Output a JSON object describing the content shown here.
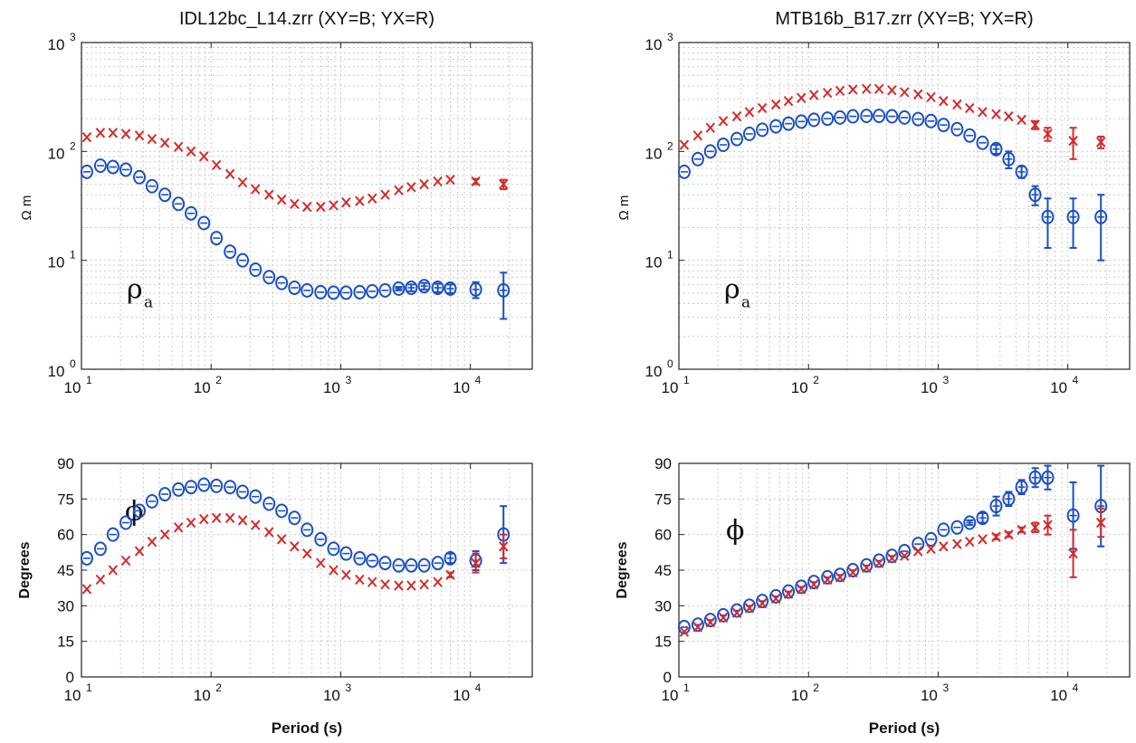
{
  "labels": {
    "rho_symbol": "ρ",
    "rho_sub": "a",
    "phi_symbol": "ϕ"
  },
  "colors": {
    "xy": "#1a4fc4",
    "yx": "#d42a2a",
    "grid": "#c9c9c9"
  },
  "chart_data": [
    {
      "type": "scatter",
      "title": "IDL12bc_L14.zrr (XY=B; YX=R)",
      "ylabel": "Ω m",
      "xlabel": "",
      "xscale": "log",
      "yscale": "log",
      "xlim": [
        10,
        30000
      ],
      "ylim": [
        1,
        1000
      ],
      "xticks": [
        "10",
        "10",
        "10",
        "10"
      ],
      "xtick_exponents": [
        "1",
        "2",
        "3",
        "4"
      ],
      "yticks": [
        "10",
        "10",
        "10",
        "10"
      ],
      "ytick_exponents": [
        "0",
        "1",
        "2",
        "3"
      ],
      "annotation": "ρa",
      "grid": true,
      "series": [
        {
          "marker": "o",
          "color": "blue",
          "x": [
            11,
            14,
            17.5,
            22,
            28,
            35,
            44,
            56,
            70,
            88,
            110,
            140,
            175,
            220,
            280,
            350,
            440,
            550,
            700,
            880,
            1100,
            1400,
            1750,
            2200,
            2800,
            3500,
            4400,
            5600,
            7000,
            11000,
            18000
          ],
          "y": [
            65,
            74,
            72,
            68,
            58,
            48,
            40,
            33,
            27,
            22,
            16,
            12,
            10,
            8.2,
            7,
            6.2,
            5.6,
            5.3,
            5.1,
            5.05,
            5.05,
            5.1,
            5.2,
            5.3,
            5.5,
            5.6,
            5.8,
            5.6,
            5.5,
            5.4,
            5.3
          ],
          "err": [
            0,
            0,
            0,
            0,
            0,
            0,
            0,
            0,
            0,
            0,
            0,
            0,
            0,
            0,
            0,
            0,
            0,
            0,
            0,
            0,
            0,
            0,
            0,
            0,
            0.2,
            0.4,
            0.4,
            0.5,
            0.5,
            0.9,
            2.4
          ]
        },
        {
          "marker": "x",
          "color": "red",
          "x": [
            11,
            14,
            17.5,
            22,
            28,
            35,
            44,
            56,
            70,
            88,
            110,
            140,
            175,
            220,
            280,
            350,
            440,
            550,
            700,
            880,
            1100,
            1400,
            1750,
            2200,
            2800,
            3500,
            4400,
            5600,
            7000,
            11000,
            18000
          ],
          "y": [
            135,
            148,
            148,
            145,
            140,
            130,
            120,
            110,
            100,
            90,
            75,
            62,
            52,
            45,
            40,
            36,
            33,
            31,
            31,
            32,
            34,
            35,
            37,
            40,
            44,
            47,
            50,
            53,
            55,
            53,
            50
          ],
          "err": [
            0,
            0,
            0,
            0,
            0,
            0,
            0,
            0,
            0,
            0,
            0,
            0,
            0,
            0,
            0,
            0,
            0,
            0,
            0,
            0,
            0,
            0,
            0,
            0,
            0,
            0,
            0,
            0,
            0,
            3,
            5
          ]
        }
      ]
    },
    {
      "type": "scatter",
      "title": "MTB16b_B17.zrr (XY=B; YX=R)",
      "ylabel": "Ω m",
      "xlabel": "",
      "xscale": "log",
      "yscale": "log",
      "xlim": [
        10,
        30000
      ],
      "ylim": [
        1,
        1000
      ],
      "xticks": [
        "10",
        "10",
        "10",
        "10"
      ],
      "xtick_exponents": [
        "1",
        "2",
        "3",
        "4"
      ],
      "yticks": [
        "10",
        "10",
        "10",
        "10"
      ],
      "ytick_exponents": [
        "0",
        "1",
        "2",
        "3"
      ],
      "annotation": "ρa",
      "grid": true,
      "series": [
        {
          "marker": "o",
          "color": "blue",
          "x": [
            11,
            14,
            17.5,
            22,
            28,
            35,
            44,
            56,
            70,
            88,
            110,
            140,
            175,
            220,
            280,
            350,
            440,
            550,
            700,
            880,
            1100,
            1400,
            1750,
            2200,
            2800,
            3500,
            4400,
            5600,
            7000,
            11000,
            18000
          ],
          "y": [
            65,
            85,
            100,
            115,
            130,
            145,
            158,
            170,
            180,
            188,
            195,
            200,
            205,
            210,
            212,
            212,
            210,
            205,
            198,
            190,
            175,
            160,
            140,
            120,
            105,
            85,
            65,
            40,
            25,
            25,
            25
          ],
          "err": [
            0,
            0,
            0,
            0,
            0,
            0,
            0,
            0,
            0,
            0,
            0,
            0,
            0,
            0,
            0,
            0,
            0,
            0,
            0,
            0,
            0,
            0,
            0,
            0,
            10,
            15,
            8,
            8,
            12,
            12,
            15
          ]
        },
        {
          "marker": "x",
          "color": "red",
          "x": [
            11,
            14,
            17.5,
            22,
            28,
            35,
            44,
            56,
            70,
            88,
            110,
            140,
            175,
            220,
            280,
            350,
            440,
            550,
            700,
            880,
            1100,
            1400,
            1750,
            2200,
            2800,
            3500,
            4400,
            5600,
            7000,
            11000,
            18000
          ],
          "y": [
            115,
            140,
            165,
            190,
            210,
            230,
            250,
            270,
            290,
            310,
            330,
            345,
            360,
            370,
            375,
            375,
            365,
            350,
            335,
            315,
            290,
            270,
            250,
            230,
            220,
            210,
            195,
            175,
            145,
            125,
            122
          ],
          "err": [
            0,
            0,
            0,
            0,
            0,
            0,
            0,
            0,
            0,
            0,
            0,
            0,
            0,
            0,
            0,
            0,
            0,
            0,
            0,
            0,
            0,
            0,
            0,
            0,
            0,
            0,
            0,
            15,
            20,
            40,
            15
          ]
        }
      ]
    },
    {
      "type": "scatter",
      "title": "",
      "ylabel": "Degrees",
      "xlabel": "Period (s)",
      "xscale": "log",
      "yscale": "linear",
      "xlim": [
        10,
        30000
      ],
      "ylim": [
        0,
        90
      ],
      "xticks": [
        "10",
        "10",
        "10",
        "10"
      ],
      "xtick_exponents": [
        "1",
        "2",
        "3",
        "4"
      ],
      "yticks": [
        "0",
        "15",
        "30",
        "45",
        "60",
        "75",
        "90"
      ],
      "annotation": "ϕ",
      "grid": true,
      "series": [
        {
          "marker": "o",
          "color": "blue",
          "x": [
            11,
            14,
            17.5,
            22,
            28,
            35,
            44,
            56,
            70,
            88,
            110,
            140,
            175,
            220,
            280,
            350,
            440,
            550,
            700,
            880,
            1100,
            1400,
            1750,
            2200,
            2800,
            3500,
            4400,
            5600,
            7000,
            11000,
            18000
          ],
          "y": [
            50,
            54,
            60,
            65,
            70,
            74,
            77,
            79,
            80,
            81,
            80.5,
            80,
            78,
            76,
            73,
            70,
            67,
            62,
            58,
            54,
            52,
            50,
            49,
            48,
            47,
            47,
            47,
            48,
            50,
            49,
            60
          ],
          "err": [
            0,
            0,
            0,
            0,
            0,
            0,
            0,
            0,
            0,
            0,
            0,
            0,
            0,
            0,
            0,
            0,
            0,
            0,
            0,
            0,
            0,
            0,
            0,
            0,
            0,
            0,
            0,
            0,
            2,
            4,
            12
          ]
        },
        {
          "marker": "x",
          "color": "red",
          "x": [
            11,
            14,
            17.5,
            22,
            28,
            35,
            44,
            56,
            70,
            88,
            110,
            140,
            175,
            220,
            280,
            350,
            440,
            550,
            700,
            880,
            1100,
            1400,
            1750,
            2200,
            2800,
            3500,
            4400,
            5600,
            7000,
            11000,
            18000
          ],
          "y": [
            37,
            41,
            45,
            49,
            53,
            57,
            60,
            63,
            65,
            66.5,
            67,
            67,
            66,
            64,
            61,
            58,
            55,
            52,
            48,
            45,
            43,
            41,
            40,
            39,
            38.5,
            38.5,
            39,
            40,
            43,
            48,
            55
          ],
          "err": [
            0,
            0,
            0,
            0,
            0,
            0,
            0,
            0,
            0,
            0,
            0,
            0,
            0,
            0,
            0,
            0,
            0,
            0,
            0,
            0,
            0,
            0,
            0,
            0,
            0,
            0,
            0,
            0,
            1,
            4,
            5
          ]
        }
      ]
    },
    {
      "type": "scatter",
      "title": "",
      "ylabel": "Degrees",
      "xlabel": "Period (s)",
      "xscale": "log",
      "yscale": "linear",
      "xlim": [
        10,
        30000
      ],
      "ylim": [
        0,
        90
      ],
      "xticks": [
        "10",
        "10",
        "10",
        "10"
      ],
      "xtick_exponents": [
        "1",
        "2",
        "3",
        "4"
      ],
      "yticks": [
        "0",
        "15",
        "30",
        "45",
        "60",
        "75",
        "90"
      ],
      "annotation": "ϕ",
      "grid": true,
      "series": [
        {
          "marker": "o",
          "color": "blue",
          "x": [
            11,
            14,
            17.5,
            22,
            28,
            35,
            44,
            56,
            70,
            88,
            110,
            140,
            175,
            220,
            280,
            350,
            440,
            550,
            700,
            880,
            1100,
            1400,
            1750,
            2200,
            2800,
            3500,
            4400,
            5600,
            7000,
            11000,
            18000
          ],
          "y": [
            21,
            22,
            24,
            26,
            28,
            30,
            32,
            34,
            36,
            38,
            40,
            42,
            43,
            45,
            47,
            49,
            51,
            53,
            56,
            58,
            62,
            63,
            65,
            67,
            72,
            75,
            80,
            84,
            84,
            68,
            72
          ],
          "err": [
            0,
            0,
            0,
            0,
            0,
            0,
            0,
            0,
            0,
            0,
            0,
            0,
            0,
            0,
            0,
            0,
            0,
            0,
            0,
            0,
            0,
            0,
            1,
            2,
            4,
            3,
            3,
            4,
            5,
            14,
            17
          ]
        },
        {
          "marker": "x",
          "color": "red",
          "x": [
            11,
            14,
            17.5,
            22,
            28,
            35,
            44,
            56,
            70,
            88,
            110,
            140,
            175,
            220,
            280,
            350,
            440,
            550,
            700,
            880,
            1100,
            1400,
            1750,
            2200,
            2800,
            3500,
            4400,
            5600,
            7000,
            11000,
            18000
          ],
          "y": [
            19,
            21,
            23,
            25,
            27,
            29,
            31,
            33,
            35,
            37,
            39,
            41,
            42,
            44,
            46,
            48,
            50,
            51,
            53,
            54,
            55,
            56,
            57,
            58,
            59,
            60,
            62,
            63,
            64,
            52,
            65
          ],
          "err": [
            0,
            0,
            0,
            0,
            0,
            0,
            0,
            0,
            0,
            0,
            0,
            0,
            0,
            0,
            0,
            0,
            0,
            0,
            0,
            0,
            0,
            0,
            0,
            0,
            1,
            1,
            1,
            2,
            4,
            10,
            6
          ]
        }
      ]
    }
  ]
}
